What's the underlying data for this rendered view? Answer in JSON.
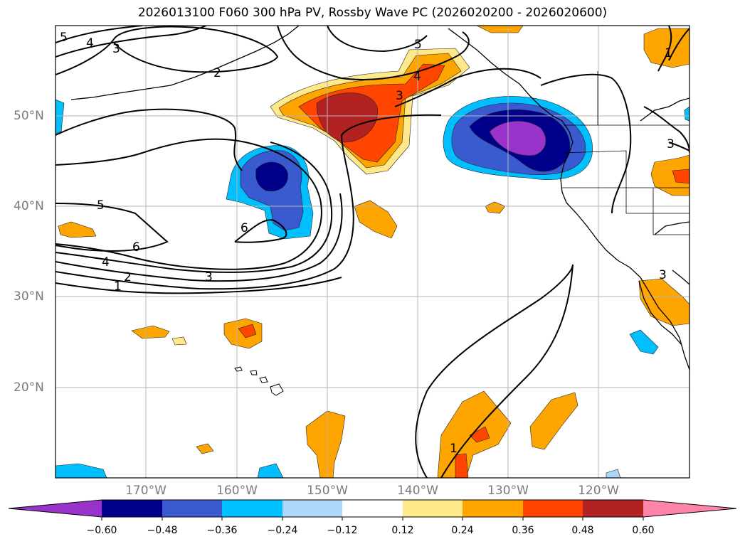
{
  "title": "2026013100 F060 300 hPa PV, Rossby Wave PC (2026020200 - 2026020600)",
  "map": {
    "lon_labels": [
      "170°W",
      "160°W",
      "150°W",
      "140°W",
      "130°W",
      "120°W"
    ],
    "lat_labels": [
      "50°N",
      "40°N",
      "30°N",
      "20°N"
    ],
    "contour_labels": [
      "5",
      "4",
      "3",
      "2",
      "5",
      "6",
      "6",
      "4",
      "2",
      "1",
      "3",
      "3",
      "4",
      "5",
      "3",
      "1",
      "1",
      "3"
    ],
    "grid": true
  },
  "colorbar": {
    "ticks": [
      "−0.60",
      "−0.48",
      "−0.36",
      "−0.24",
      "−0.12",
      "0.12",
      "0.24",
      "0.36",
      "0.48",
      "0.60"
    ],
    "colors": [
      "#9933cc",
      "#00008b",
      "#3a5bd0",
      "#00bfff",
      "#add8f7",
      "#ffffff",
      "#ffe88a",
      "#ffa500",
      "#ff4500",
      "#b22222",
      "#ff85a8"
    ],
    "extend": "both"
  }
}
